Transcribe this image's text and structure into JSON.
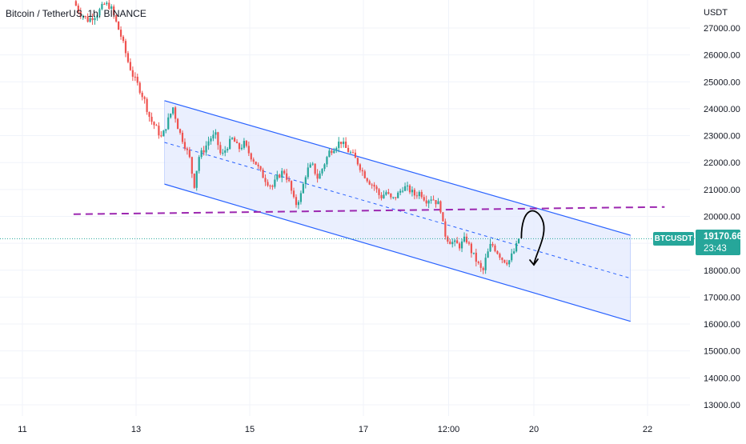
{
  "header": {
    "title": "Bitcoin / TetherUS, 1h, BINANCE"
  },
  "axis": {
    "unit": "USDT"
  },
  "last_price": {
    "symbol": "BTCUSDT",
    "value": "19170.66",
    "countdown": "23:43"
  },
  "colors": {
    "up": "#26a69a",
    "down": "#ef5350",
    "channel": "#2962ff",
    "channel_fill": "#e3eafd",
    "support": "#9c27b0",
    "last_price_line": "#26a69a",
    "grid": "#f0f3fa",
    "arrow": "#000000"
  },
  "chart_data": {
    "type": "candlestick",
    "ylim": [
      12700,
      28000
    ],
    "y_ticks": [
      13000,
      14000,
      15000,
      16000,
      17000,
      18000,
      19000,
      20000,
      21000,
      22000,
      23000,
      24000,
      25000,
      26000,
      27000
    ],
    "y_tick_labels": [
      "13000.00",
      "14000.00",
      "15000.00",
      "16000.00",
      "17000.00",
      "18000.00",
      "19000.00",
      "20000.00",
      "21000.00",
      "22000.00",
      "23000.00",
      "24000.00",
      "25000.00",
      "26000.00",
      "27000.00"
    ],
    "x_ticks": [
      {
        "label": "11",
        "day": 11
      },
      {
        "label": "13",
        "day": 13
      },
      {
        "label": "15",
        "day": 15
      },
      {
        "label": "17",
        "day": 17
      },
      {
        "label": "12:00",
        "day": 18.5
      },
      {
        "label": "20",
        "day": 20
      },
      {
        "label": "22",
        "day": 22
      }
    ],
    "xlim": [
      10.6,
      22.6
    ],
    "price_path": [
      [
        11.9,
        28000
      ],
      [
        12.0,
        27600
      ],
      [
        12.15,
        27300
      ],
      [
        12.3,
        27500
      ],
      [
        12.45,
        27900
      ],
      [
        12.55,
        27800
      ],
      [
        12.65,
        27200
      ],
      [
        12.75,
        26600
      ],
      [
        12.85,
        25800
      ],
      [
        12.95,
        25200
      ],
      [
        13.05,
        24800
      ],
      [
        13.15,
        24300
      ],
      [
        13.25,
        23600
      ],
      [
        13.35,
        23300
      ],
      [
        13.45,
        22900
      ],
      [
        13.55,
        23500
      ],
      [
        13.65,
        24050
      ],
      [
        13.75,
        23200
      ],
      [
        13.85,
        22700
      ],
      [
        13.95,
        22100
      ],
      [
        14.02,
        21100
      ],
      [
        14.1,
        22200
      ],
      [
        14.2,
        22500
      ],
      [
        14.3,
        22900
      ],
      [
        14.4,
        23000
      ],
      [
        14.5,
        22200
      ],
      [
        14.6,
        22600
      ],
      [
        14.7,
        22900
      ],
      [
        14.8,
        22500
      ],
      [
        14.9,
        22700
      ],
      [
        15.0,
        22300
      ],
      [
        15.1,
        22000
      ],
      [
        15.2,
        21600
      ],
      [
        15.3,
        21300
      ],
      [
        15.4,
        21100
      ],
      [
        15.5,
        21500
      ],
      [
        15.6,
        21700
      ],
      [
        15.7,
        21200
      ],
      [
        15.8,
        20400
      ],
      [
        15.9,
        20800
      ],
      [
        16.0,
        21700
      ],
      [
        16.1,
        21900
      ],
      [
        16.2,
        21400
      ],
      [
        16.3,
        21900
      ],
      [
        16.4,
        22400
      ],
      [
        16.5,
        22600
      ],
      [
        16.6,
        22800
      ],
      [
        16.7,
        22500
      ],
      [
        16.8,
        22300
      ],
      [
        16.9,
        22000
      ],
      [
        17.0,
        21600
      ],
      [
        17.1,
        21300
      ],
      [
        17.2,
        21100
      ],
      [
        17.3,
        20700
      ],
      [
        17.4,
        20900
      ],
      [
        17.5,
        20600
      ],
      [
        17.6,
        20800
      ],
      [
        17.7,
        21100
      ],
      [
        17.8,
        21000
      ],
      [
        17.9,
        20800
      ],
      [
        18.0,
        20900
      ],
      [
        18.1,
        20600
      ],
      [
        18.2,
        20700
      ],
      [
        18.3,
        20500
      ],
      [
        18.35,
        20400
      ],
      [
        18.42,
        19400
      ],
      [
        18.5,
        19100
      ],
      [
        18.6,
        19000
      ],
      [
        18.7,
        18900
      ],
      [
        18.8,
        19200
      ],
      [
        18.9,
        18700
      ],
      [
        19.0,
        18300
      ],
      [
        19.1,
        17900
      ],
      [
        19.15,
        18400
      ],
      [
        19.25,
        19000
      ],
      [
        19.35,
        18700
      ],
      [
        19.45,
        18400
      ],
      [
        19.55,
        18300
      ],
      [
        19.65,
        18700
      ],
      [
        19.75,
        19170.66
      ]
    ],
    "price_path_note": "",
    "channel": {
      "upper": [
        [
          13.5,
          24300
        ],
        [
          21.7,
          19300
        ]
      ],
      "lower": [
        [
          13.5,
          21200
        ],
        [
          21.7,
          16100
        ]
      ],
      "median": [
        [
          13.5,
          22750
        ],
        [
          21.7,
          17700
        ]
      ]
    },
    "support_line": {
      "from": [
        11.9,
        20080
      ],
      "to": [
        22.3,
        20350
      ]
    },
    "last_price": 19170.66,
    "arrow": {
      "peak": [
        19.95,
        20000
      ],
      "end": [
        20.0,
        18200
      ]
    }
  }
}
